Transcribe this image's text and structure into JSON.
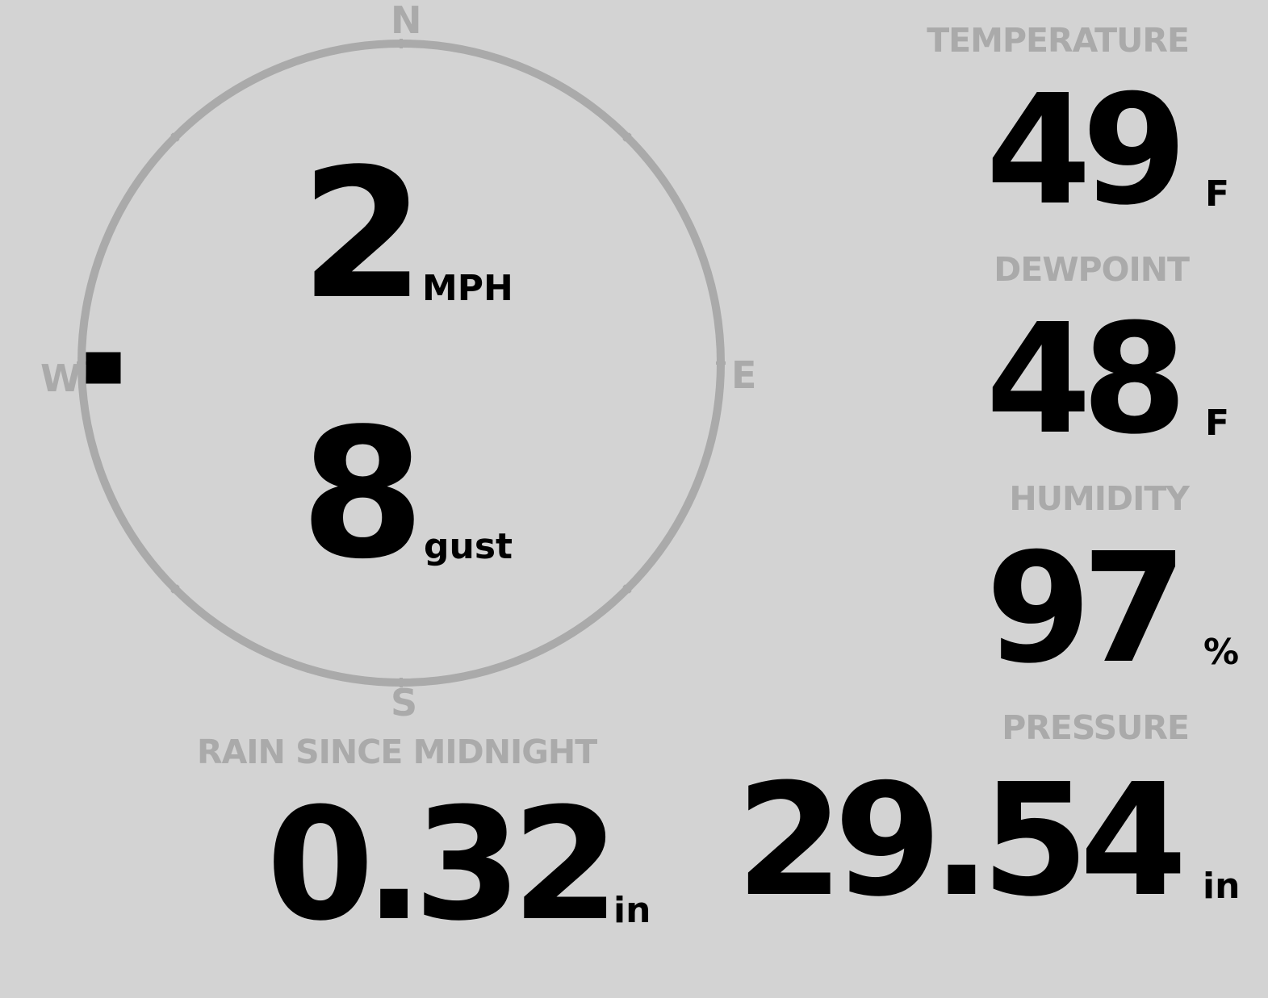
{
  "compass": {
    "north": "N",
    "east": "E",
    "south": "S",
    "west": "W",
    "wind_direction_deg": 270,
    "ring_color": "#aaaaaa",
    "marker_color": "#000000"
  },
  "wind": {
    "speed": "2",
    "speed_unit": "MPH",
    "gust": "8",
    "gust_unit": "gust"
  },
  "temperature": {
    "label": "TEMPERATURE",
    "value": "49",
    "unit": "F"
  },
  "dewpoint": {
    "label": "DEWPOINT",
    "value": "48",
    "unit": "F"
  },
  "humidity": {
    "label": "HUMIDITY",
    "value": "97",
    "unit": "%"
  },
  "pressure": {
    "label": "PRESSURE",
    "value": "29.54",
    "unit": "in"
  },
  "rain": {
    "label": "RAIN SINCE MIDNIGHT",
    "value": "0.32",
    "unit": "in"
  },
  "colors": {
    "background": "#d3d3d3",
    "label": "#aaaaaa",
    "value": "#000000"
  }
}
